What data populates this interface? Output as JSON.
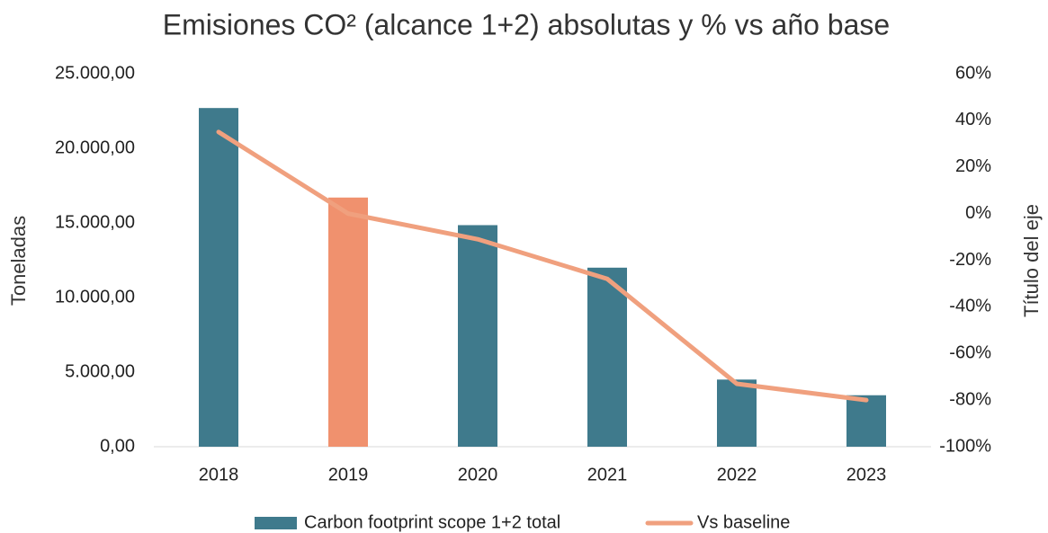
{
  "chart_data": {
    "type": "bar_line",
    "title": "Emisiones CO² (alcance 1+2) absolutas y % vs año base",
    "y_label": "Toneladas",
    "y2_label": "Título del eje",
    "categories": [
      "2018",
      "2019",
      "2020",
      "2021",
      "2022",
      "2023"
    ],
    "series": [
      {
        "name": "Carbon footprint scope 1+2 total",
        "type": "bar",
        "color": "#3f7a8c",
        "colors": [
          "#3f7a8c",
          "#f0916e",
          "#3f7a8c",
          "#3f7a8c",
          "#3f7a8c",
          "#3f7a8c"
        ],
        "values": [
          22700,
          16700,
          14850,
          12000,
          4500,
          3450
        ]
      },
      {
        "name": "Vs baseline",
        "type": "line",
        "axis": "y2",
        "color": "#f0a07e",
        "values": [
          35,
          0,
          -11,
          -28,
          -73,
          -80
        ]
      }
    ],
    "ylim": [
      0,
      25000
    ],
    "yticks": [
      {
        "value": 0,
        "label": "0,00"
      },
      {
        "value": 5000,
        "label": "5.000,00"
      },
      {
        "value": 10000,
        "label": "10.000,00"
      },
      {
        "value": 15000,
        "label": "15.000,00"
      },
      {
        "value": 20000,
        "label": "20.000,00"
      },
      {
        "value": 25000,
        "label": "25.000,00"
      }
    ],
    "y2lim": [
      -100,
      60
    ],
    "y2ticks": [
      {
        "value": -100,
        "label": "-100%"
      },
      {
        "value": -80,
        "label": "-80%"
      },
      {
        "value": -60,
        "label": "-60%"
      },
      {
        "value": -40,
        "label": "-40%"
      },
      {
        "value": -20,
        "label": "-20%"
      },
      {
        "value": 0,
        "label": "0%"
      },
      {
        "value": 20,
        "label": "20%"
      },
      {
        "value": 40,
        "label": "40%"
      },
      {
        "value": 60,
        "label": "60%"
      }
    ],
    "grid": false,
    "legend": "bottom"
  }
}
